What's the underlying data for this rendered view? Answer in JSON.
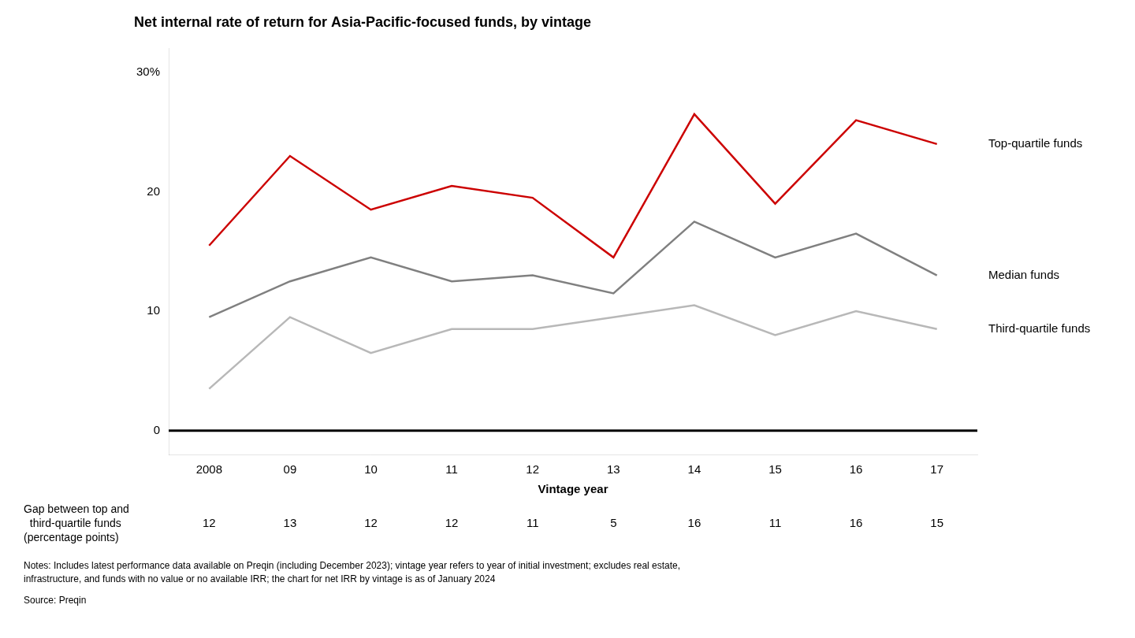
{
  "chart_data": {
    "type": "line",
    "title": "Net internal rate of return for Asia-Pacific-focused funds, by vintage",
    "x_label": "Vintage year",
    "categories": [
      "2008",
      "09",
      "10",
      "11",
      "12",
      "13",
      "14",
      "15",
      "16",
      "17"
    ],
    "series": [
      {
        "name": "Top-quartile funds",
        "color": "#cc0000",
        "values": [
          15.5,
          23.0,
          18.5,
          20.5,
          19.5,
          14.5,
          26.5,
          19.0,
          26.0,
          24.0
        ]
      },
      {
        "name": "Median funds",
        "color": "#808080",
        "values": [
          9.5,
          12.5,
          14.5,
          12.5,
          13.0,
          11.5,
          17.5,
          14.5,
          16.5,
          13.0
        ]
      },
      {
        "name": "Third-quartile funds",
        "color": "#b8b8b8",
        "values": [
          3.5,
          9.5,
          6.5,
          8.5,
          8.5,
          9.5,
          10.5,
          8.0,
          10.0,
          8.5
        ]
      }
    ],
    "ylim": [
      -2,
      32
    ],
    "yticks": [
      0,
      10,
      20,
      {
        "value": 30,
        "label": "30%"
      }
    ],
    "grid": false,
    "gap_label": [
      "Gap between top and",
      "  third-quartile funds",
      "(percentage points)"
    ],
    "gap_values": [
      12,
      13,
      12,
      12,
      11,
      5,
      16,
      11,
      16,
      15
    ],
    "notes": [
      "Notes: Includes latest performance data available on Preqin (including December 2023); vintage year refers to year of initial investment; excludes real estate,",
      "infrastructure, and funds with no value or no available IRR; the chart for net IRR by vintage is as of January 2024"
    ],
    "source": "Source: Preqin"
  }
}
